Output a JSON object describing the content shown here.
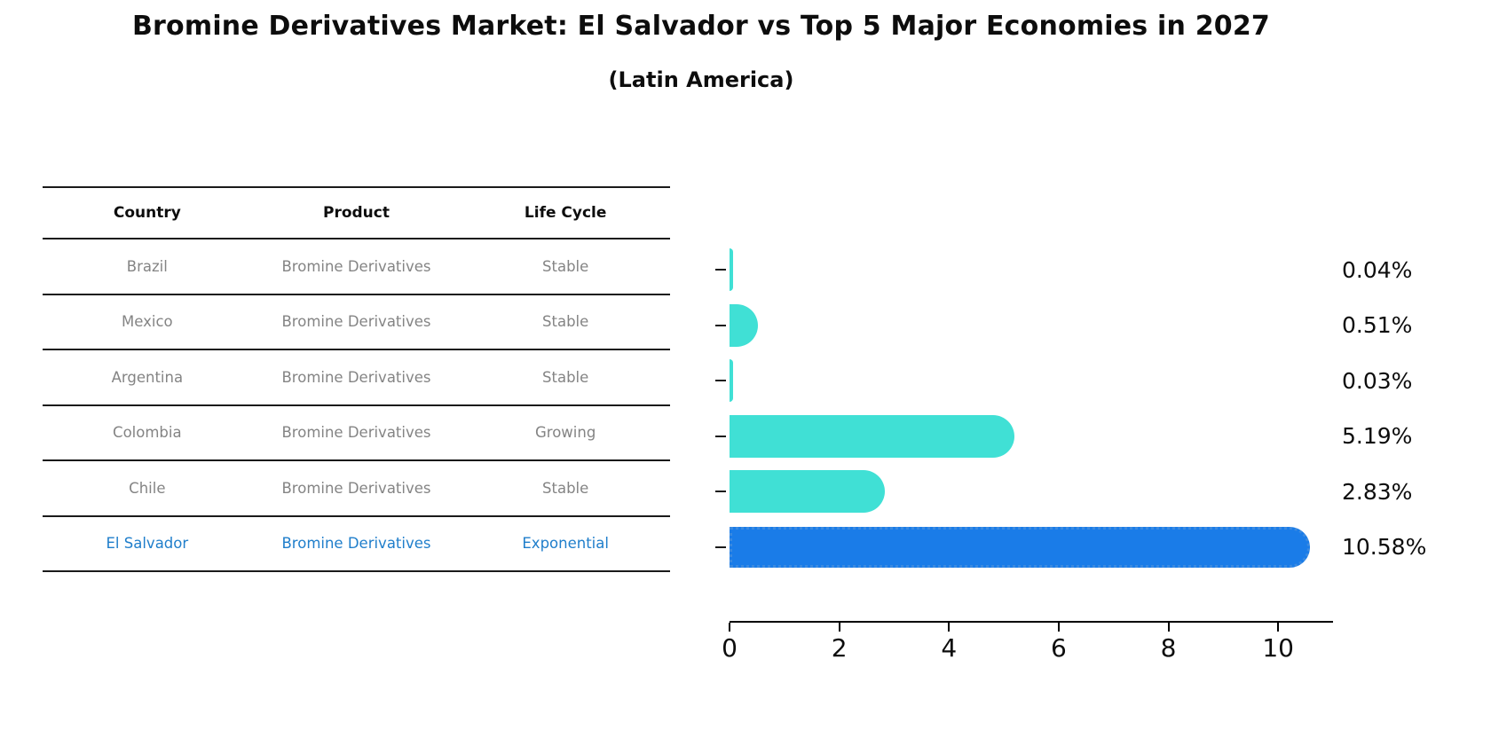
{
  "title": "Bromine Derivatives Market: El Salvador vs Top 5 Major Economies in 2027",
  "subtitle": "(Latin America)",
  "table": {
    "headers": [
      "Country",
      "Product",
      "Life Cycle"
    ],
    "rows": [
      {
        "country": "Brazil",
        "product": "Bromine Derivatives",
        "life_cycle": "Stable",
        "highlighted": false
      },
      {
        "country": "Mexico",
        "product": "Bromine Derivatives",
        "life_cycle": "Stable",
        "highlighted": false
      },
      {
        "country": "Argentina",
        "product": "Bromine Derivatives",
        "life_cycle": "Stable",
        "highlighted": false
      },
      {
        "country": "Colombia",
        "product": "Bromine Derivatives",
        "life_cycle": "Growing",
        "highlighted": false
      },
      {
        "country": "Chile",
        "product": "Bromine Derivatives",
        "life_cycle": "Stable",
        "highlighted": false
      },
      {
        "country": "El Salvador",
        "product": "Bromine Derivatives",
        "life_cycle": "Exponential",
        "highlighted": true
      }
    ]
  },
  "chart_data": {
    "type": "bar",
    "orientation": "horizontal",
    "title": "Bromine Derivatives Market: El Salvador vs Top 5 Major Economies in 2027",
    "subtitle": "(Latin America)",
    "categories": [
      "Brazil",
      "Mexico",
      "Argentina",
      "Colombia",
      "Chile",
      "El Salvador"
    ],
    "values": [
      0.04,
      0.51,
      0.03,
      5.19,
      2.83,
      10.58
    ],
    "value_labels": [
      "0.04%",
      "0.51%",
      "0.03%",
      "5.19%",
      "2.83%",
      "10.58%"
    ],
    "xlim": [
      0,
      11
    ],
    "xticks": [
      0,
      2,
      4,
      6,
      8,
      10
    ],
    "grid": false,
    "legend": false,
    "highlight_index": 5,
    "bar_color": "#40E0D5",
    "highlight_bar_color": "#1A7CE8",
    "highlight_border_color": "#3b8ae0",
    "highlight_text_color": "#1f7ecb",
    "table_text_color": "#848484"
  }
}
